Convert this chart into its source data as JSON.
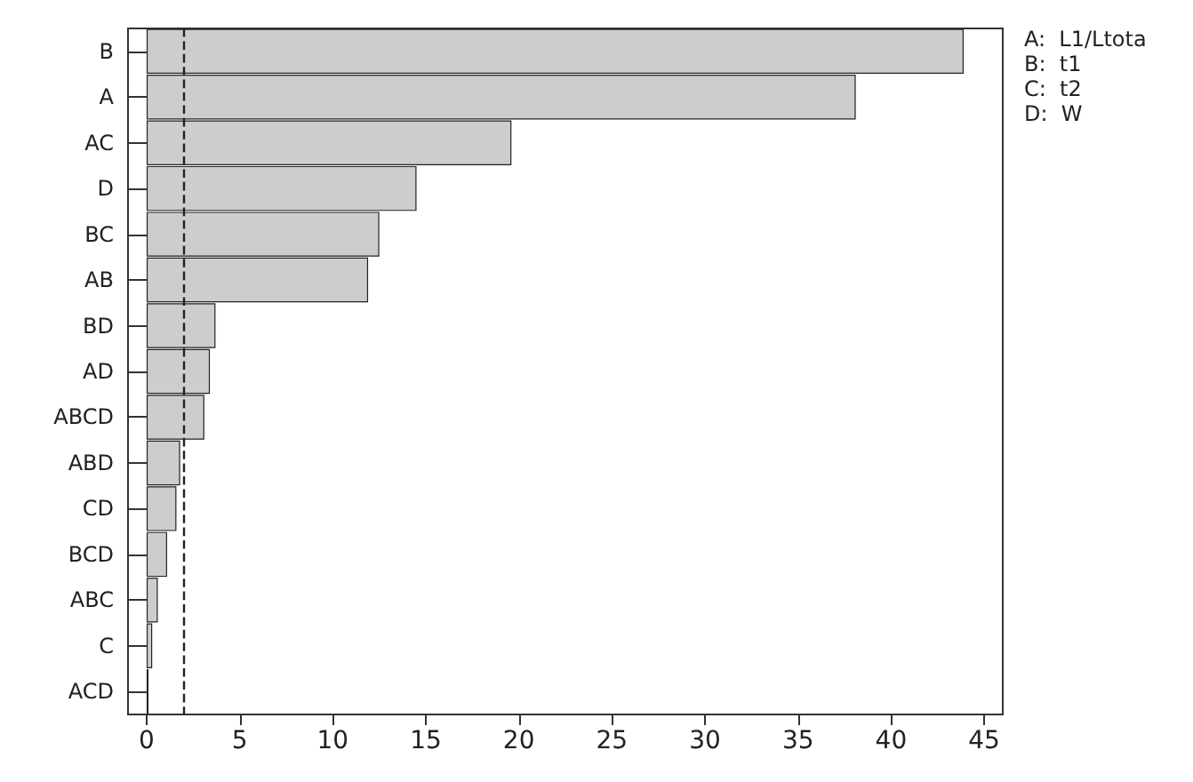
{
  "chart_data": {
    "type": "bar",
    "orientation": "horizontal",
    "categories": [
      "B",
      "A",
      "AC",
      "D",
      "BC",
      "AB",
      "BD",
      "AD",
      "ABCD",
      "ABD",
      "CD",
      "BCD",
      "ABC",
      "C",
      "ACD"
    ],
    "values": [
      43.9,
      38.1,
      19.6,
      14.5,
      12.5,
      11.9,
      3.7,
      3.4,
      3.1,
      1.8,
      1.6,
      1.1,
      0.6,
      0.3,
      0.1
    ],
    "color": "#cdcdcd",
    "xlim": [
      -1,
      46
    ],
    "xticks": [
      0,
      5,
      10,
      15,
      20,
      25,
      30,
      35,
      40,
      45
    ],
    "ref_lines": [
      {
        "axis": "x",
        "value": 2.0,
        "line_style": "dashed",
        "color": "#222222"
      }
    ],
    "annotations": [
      "A:  L1/Ltota",
      "B:  t1",
      "C:  t2",
      "D:  W"
    ],
    "grid": false
  }
}
